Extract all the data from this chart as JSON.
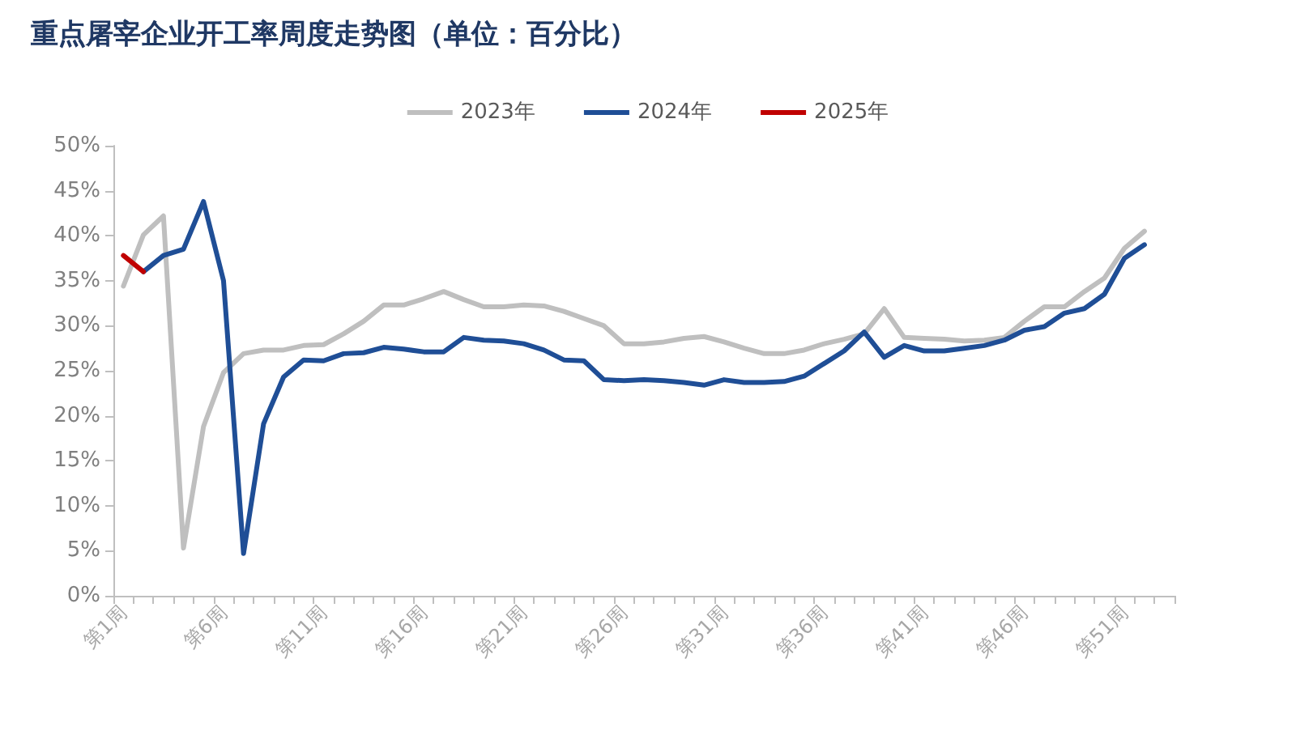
{
  "chart_data": {
    "type": "line",
    "title": "重点屠宰企业开工率周度走势图（单位：百分比）",
    "categories": [
      "第1周",
      null,
      null,
      null,
      null,
      "第6周",
      null,
      null,
      null,
      null,
      "第11周",
      null,
      null,
      null,
      null,
      "第16周",
      null,
      null,
      null,
      null,
      "第21周",
      null,
      null,
      null,
      null,
      "第26周",
      null,
      null,
      null,
      null,
      "第31周",
      null,
      null,
      null,
      null,
      "第36周",
      null,
      null,
      null,
      null,
      "第41周",
      null,
      null,
      null,
      null,
      "第46周",
      null,
      null,
      null,
      null,
      "第51周",
      null,
      null
    ],
    "series": [
      {
        "name": "2023年",
        "color": "#bfbfbf",
        "values": [
          34.4,
          40.1,
          42.2,
          5.3,
          18.8,
          24.8,
          26.9,
          27.3,
          27.3,
          27.8,
          27.9,
          29.1,
          30.5,
          32.3,
          32.3,
          33.0,
          33.8,
          32.9,
          32.1,
          32.1,
          32.3,
          32.2,
          31.6,
          30.8,
          30.0,
          28.0,
          28.0,
          28.2,
          28.6,
          28.8,
          28.2,
          27.5,
          26.9,
          26.9,
          27.3,
          28.0,
          28.5,
          29.1,
          31.9,
          28.7,
          28.6,
          28.5,
          28.3,
          28.4,
          28.7,
          30.5,
          32.1,
          32.1,
          33.8,
          35.3,
          38.6,
          40.5,
          null
        ]
      },
      {
        "name": "2024年",
        "color": "#1f4e96",
        "values": [
          null,
          36.0,
          37.8,
          38.5,
          43.8,
          35.0,
          4.7,
          19.1,
          24.3,
          26.2,
          26.1,
          26.9,
          27.0,
          27.6,
          27.4,
          27.1,
          27.1,
          28.7,
          28.4,
          28.3,
          28.0,
          27.3,
          26.2,
          26.1,
          24.0,
          23.9,
          24.0,
          23.9,
          23.7,
          23.4,
          24.0,
          23.7,
          23.7,
          23.8,
          24.4,
          25.8,
          27.2,
          29.3,
          26.5,
          27.8,
          27.2,
          27.2,
          27.5,
          27.8,
          28.4,
          29.5,
          29.9,
          31.4,
          31.9,
          33.5,
          37.5,
          39.0,
          null
        ]
      },
      {
        "name": "2025年",
        "color": "#c00000",
        "values": [
          37.8,
          36.0,
          null,
          null,
          null,
          null,
          null,
          null,
          null,
          null,
          null,
          null,
          null,
          null,
          null,
          null,
          null,
          null,
          null,
          null,
          null,
          null,
          null,
          null,
          null,
          null,
          null,
          null,
          null,
          null,
          null,
          null,
          null,
          null,
          null,
          null,
          null,
          null,
          null,
          null,
          null,
          null,
          null,
          null,
          null,
          null,
          null,
          null,
          null,
          null,
          null,
          null,
          null
        ]
      }
    ],
    "ylim": [
      0,
      50
    ],
    "yticks": [
      {
        "value": 0,
        "label": "0%"
      },
      {
        "value": 5,
        "label": "5%"
      },
      {
        "value": 10,
        "label": "10%"
      },
      {
        "value": 15,
        "label": "15%"
      },
      {
        "value": 20,
        "label": "20%"
      },
      {
        "value": 25,
        "label": "25%"
      },
      {
        "value": 30,
        "label": "30%"
      },
      {
        "value": 35,
        "label": "35%"
      },
      {
        "value": 40,
        "label": "40%"
      },
      {
        "value": 45,
        "label": "45%"
      },
      {
        "value": 50,
        "label": "50%"
      }
    ],
    "grid": false,
    "legend": "top",
    "marker": "none",
    "line_style": "solid"
  }
}
